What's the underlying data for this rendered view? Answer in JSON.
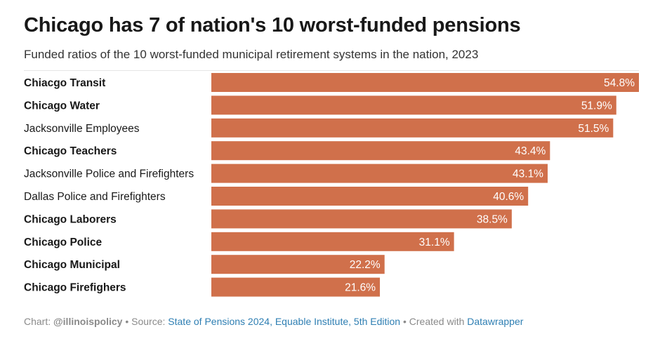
{
  "header": {
    "title": "Chicago has 7 of nation's 10 worst-funded pensions",
    "subtitle": "Funded ratios of the 10 worst-funded municipal retirement systems in the nation, 2023"
  },
  "colors": {
    "bar": "#d0704b",
    "label_text": "#181818",
    "value_text": "#ffffff"
  },
  "chart_data": {
    "type": "bar",
    "orientation": "horizontal",
    "title": "Chicago has 7 of nation's 10 worst-funded pensions",
    "subtitle": "Funded ratios of the 10 worst-funded municipal retirement systems in the nation, 2023",
    "xlim": [
      0,
      54.8
    ],
    "grid": false,
    "categories": [
      "Chiacgo Transit",
      "Chicago Water",
      "Jacksonville Employees",
      "Chicago Teachers",
      "Jacksonville Police and Firefighters",
      "Dallas Police and Firefighters",
      "Chicago Laborers",
      "Chicago Police",
      "Chicago Municipal",
      "Chicago Firefighers"
    ],
    "values": [
      54.8,
      51.9,
      51.5,
      43.4,
      43.1,
      40.6,
      38.5,
      31.1,
      22.2,
      21.6
    ],
    "value_labels": [
      "54.8%",
      "51.9%",
      "51.5%",
      "43.4%",
      "43.1%",
      "40.6%",
      "38.5%",
      "31.1%",
      "22.2%",
      "21.6%"
    ],
    "bold_labels": [
      true,
      true,
      false,
      true,
      false,
      false,
      true,
      true,
      true,
      true
    ]
  },
  "footer": {
    "chart_prefix": "Chart: ",
    "chart_credit": "@illinoispolicy",
    "sep1": " • Source: ",
    "source": "State of Pensions 2024, Equable Institute, 5th Edition",
    "sep2": " • Created with ",
    "tool": "Datawrapper"
  }
}
